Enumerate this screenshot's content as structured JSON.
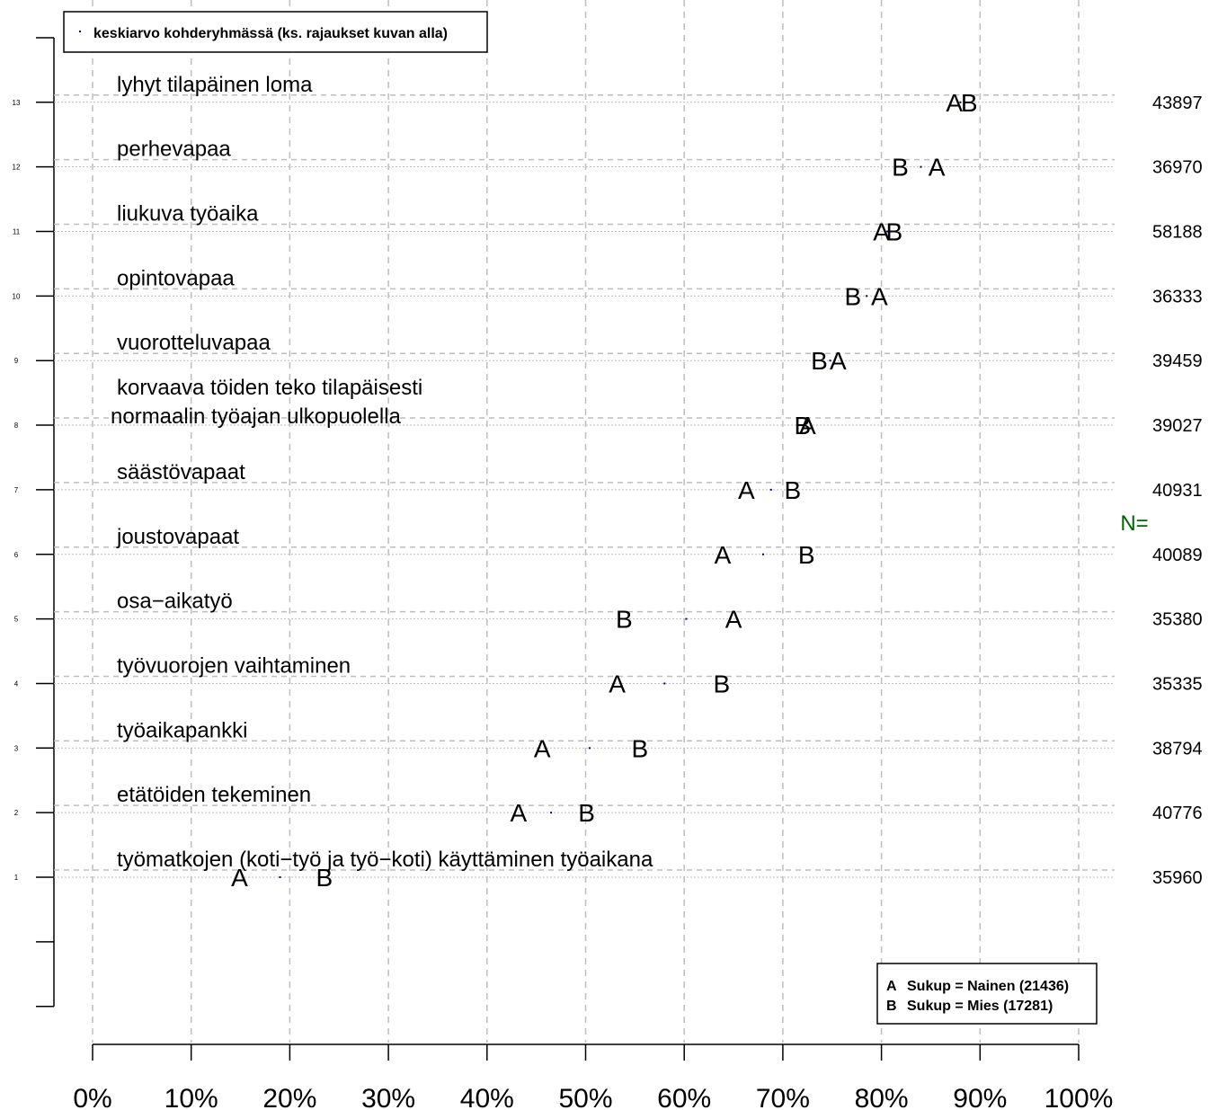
{
  "chart_data": {
    "type": "scatter",
    "title": "",
    "xlabel": "",
    "ylabel": "",
    "xlim": [
      0,
      100
    ],
    "x_tick_labels": [
      "0%",
      "10%",
      "20%",
      "30%",
      "40%",
      "50%",
      "60%",
      "70%",
      "80%",
      "90%",
      "100%"
    ],
    "y_tick_labels": [
      "1",
      "2",
      "3",
      "4",
      "5",
      "6",
      "7",
      "8",
      "9",
      "10",
      "11",
      "12",
      "13"
    ],
    "grid": true,
    "n_header": "N=",
    "top_legend": {
      "placement": "top-left",
      "label": "keskiarvo kohderyhmässä (ks. rajaukset kuvan alla)"
    },
    "group_legend": {
      "placement": "bottom-right",
      "entries": [
        {
          "letter": "A",
          "label": "Sukup = Nainen (21436)"
        },
        {
          "letter": "B",
          "label": "Sukup = Mies (17281)"
        }
      ]
    },
    "rows": [
      {
        "y": 13,
        "label_lines": [
          "lyhyt tilapäinen loma"
        ],
        "A": 87.4,
        "B": 88.9,
        "mean": 88.0,
        "n": "43897"
      },
      {
        "y": 12,
        "label_lines": [
          "perhevapaa"
        ],
        "A": 85.6,
        "B": 81.9,
        "mean": 84.0,
        "n": "36970"
      },
      {
        "y": 11,
        "label_lines": [
          "liukuva työaika"
        ],
        "A": 80.0,
        "B": 81.3,
        "mean": 80.6,
        "n": "58188"
      },
      {
        "y": 10,
        "label_lines": [
          "opintovapaa"
        ],
        "A": 79.8,
        "B": 77.1,
        "mean": 78.5,
        "n": "36333"
      },
      {
        "y": 9,
        "label_lines": [
          "vuorotteluvapaa"
        ],
        "A": 75.6,
        "B": 73.7,
        "mean": 74.8,
        "n": "39459"
      },
      {
        "y": 8,
        "label_lines": [
          "korvaava töiden teko tilapäisesti",
          "normaalin työajan ulkopuolella"
        ],
        "A": 72.5,
        "B": 72.0,
        "mean": 72.2,
        "n": "39027"
      },
      {
        "y": 7,
        "label_lines": [
          "säästövapaat"
        ],
        "A": 66.3,
        "B": 71.0,
        "mean": 68.8,
        "n": "40931"
      },
      {
        "y": 6,
        "label_lines": [
          "joustovapaat"
        ],
        "A": 63.9,
        "B": 72.4,
        "mean": 68.0,
        "n": "40089"
      },
      {
        "y": 5,
        "label_lines": [
          "osa−aikatyö"
        ],
        "A": 65.0,
        "B": 53.9,
        "mean": 60.2,
        "n": "35380"
      },
      {
        "y": 4,
        "label_lines": [
          "työvuorojen vaihtaminen"
        ],
        "A": 53.2,
        "B": 63.8,
        "mean": 58.0,
        "n": "35335"
      },
      {
        "y": 3,
        "label_lines": [
          "työaikapankki"
        ],
        "A": 45.6,
        "B": 55.5,
        "mean": 50.4,
        "n": "38794"
      },
      {
        "y": 2,
        "label_lines": [
          "etätöiden tekeminen"
        ],
        "A": 43.2,
        "B": 50.1,
        "mean": 46.5,
        "n": "40776"
      },
      {
        "y": 1,
        "label_lines": [
          "työmatkojen (koti−työ ja työ−koti) käyttäminen työaikana"
        ],
        "A": 14.9,
        "B": 23.5,
        "mean": 19.0,
        "n": "35960"
      }
    ],
    "colors": {
      "grid": "#bdbdbd",
      "axis": "#000000",
      "text": "#000000",
      "mean_marker": "#000080",
      "n_header": "#006400"
    }
  }
}
